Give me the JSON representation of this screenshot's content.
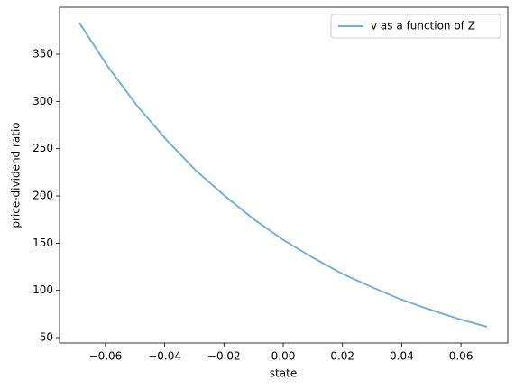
{
  "chart_data": {
    "type": "line",
    "xlabel": "state",
    "ylabel": "price-dividend ratio",
    "x": [
      -0.0688,
      -0.059,
      -0.0492,
      -0.0393,
      -0.0295,
      -0.0197,
      -0.0098,
      0,
      0.0098,
      0.0197,
      0.0295,
      0.0393,
      0.0492,
      0.059,
      0.0688
    ],
    "series": [
      {
        "name": "v as a function of Z",
        "color": "#7aafd4",
        "values": [
          383,
          336,
          295,
          259,
          227,
          200,
          175,
          153.5,
          135,
          118,
          104,
          91,
          80,
          70,
          61.5
        ]
      }
    ],
    "xlim": [
      -0.0755,
      0.0758
    ],
    "xticks": [
      {
        "value": -0.06,
        "label": "−0.06"
      },
      {
        "value": -0.04,
        "label": "−0.04"
      },
      {
        "value": -0.02,
        "label": "−0.02"
      },
      {
        "value": 0,
        "label": "0.00"
      },
      {
        "value": 0.02,
        "label": "0.02"
      },
      {
        "value": 0.04,
        "label": "0.04"
      },
      {
        "value": 0.06,
        "label": "0.06"
      }
    ],
    "ylim": [
      44.3,
      399.7
    ],
    "yticks": [
      50,
      100,
      150,
      200,
      250,
      300,
      350
    ],
    "legend": "upper right"
  }
}
